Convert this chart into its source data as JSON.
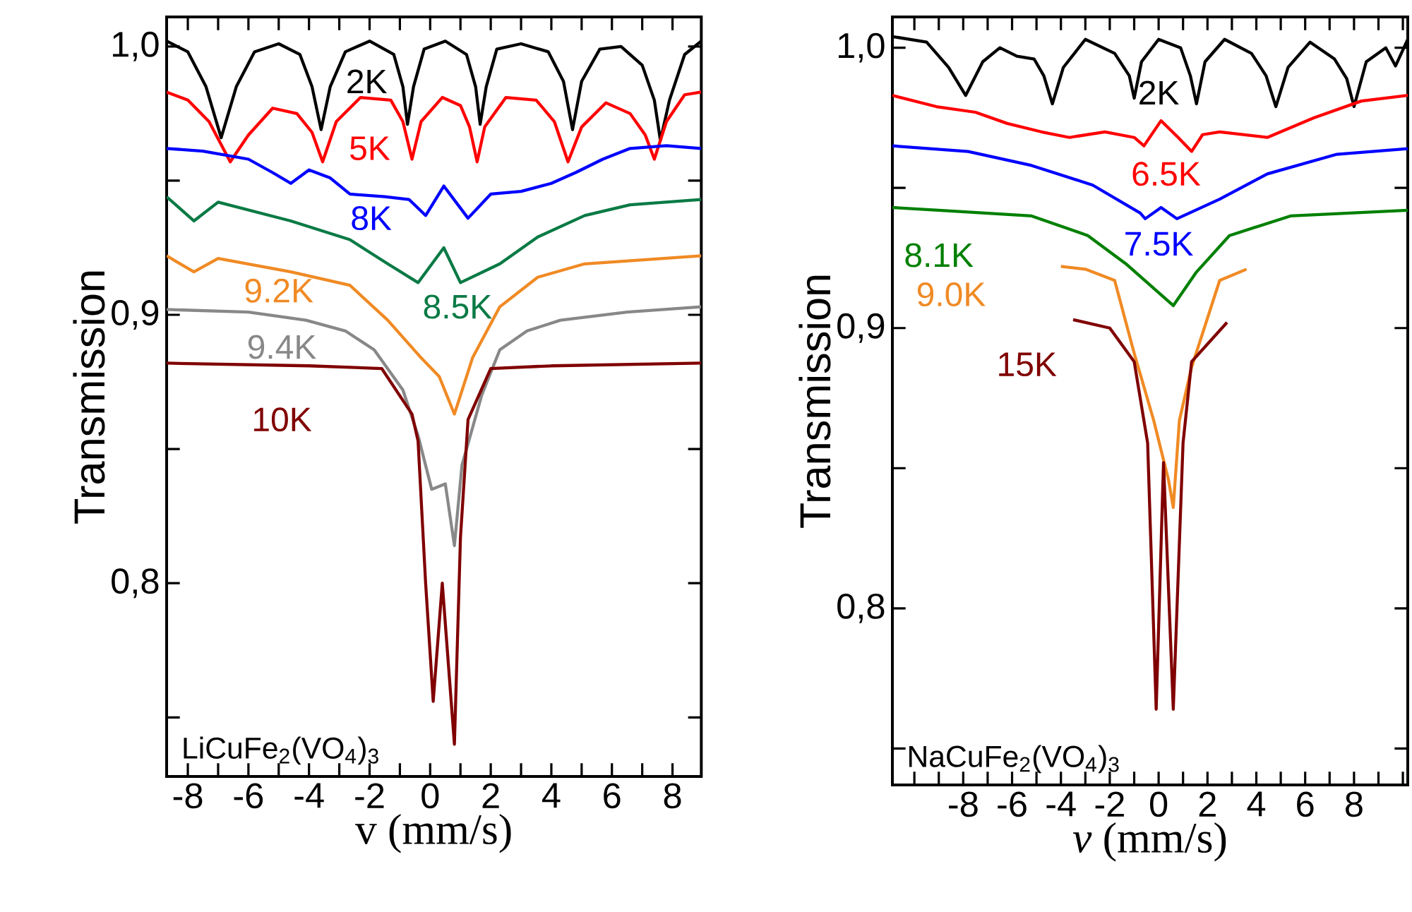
{
  "chart_data": [
    {
      "type": "line",
      "xlabel": "v (mm/s)",
      "ylabel": "Transmission",
      "annotations": [
        "LiCuFe$_{2}$(VO$_{4}$)$_{3}$"
      ],
      "xlim": [
        -8.7,
        8.95
      ],
      "ylim": [
        0.728,
        1.011
      ],
      "xticks": [
        -8,
        {
          "value": -7,
          "label": null
        },
        -6,
        {
          "value": -5,
          "label": null
        },
        -4,
        {
          "value": -3,
          "label": null
        },
        -2,
        {
          "value": -1,
          "label": null
        },
        0,
        {
          "value": 1,
          "label": null
        },
        2,
        {
          "value": 3,
          "label": null
        },
        4,
        {
          "value": 5,
          "label": null
        },
        6,
        {
          "value": 7,
          "label": null
        },
        8
      ],
      "yticks": [
        {
          "value": 0.75,
          "label": null
        },
        {
          "value": 0.8,
          "label": "0,8"
        },
        {
          "value": 0.85,
          "label": null
        },
        {
          "value": 0.9,
          "label": "0,9"
        },
        {
          "value": 0.95,
          "label": null
        },
        {
          "value": 1.0,
          "label": "1,0"
        }
      ],
      "series": [
        {
          "name": "2K",
          "color": "#000000",
          "x": [
            -8.7,
            -8,
            -7.4,
            -6.9,
            -6.4,
            -5.8,
            -5,
            -4.3,
            -3.9,
            -3.6,
            -3.3,
            -2.8,
            -2,
            -1.2,
            -0.9,
            -0.75,
            -0.55,
            -0.2,
            0.5,
            1.2,
            1.5,
            1.65,
            1.85,
            2.2,
            3,
            3.9,
            4.4,
            4.7,
            5.0,
            5.6,
            6.3,
            7.0,
            7.4,
            7.6,
            7.9,
            8.4,
            8.95
          ],
          "values": [
            1.002,
            0.998,
            0.985,
            0.966,
            0.985,
            0.998,
            1.001,
            0.997,
            0.985,
            0.969,
            0.985,
            0.998,
            1.002,
            0.997,
            0.985,
            0.971,
            0.985,
            0.999,
            1.002,
            0.997,
            0.985,
            0.971,
            0.985,
            0.999,
            1.001,
            0.998,
            0.987,
            0.969,
            0.987,
            0.999,
            1.0,
            0.993,
            0.98,
            0.965,
            0.98,
            0.997,
            1.002
          ]
        },
        {
          "name": "5K",
          "color": "#ff0000",
          "x": [
            -8.7,
            -8,
            -7.3,
            -6.6,
            -6,
            -5.2,
            -4.4,
            -3.9,
            -3.55,
            -3.1,
            -2.3,
            -1.3,
            -0.9,
            -0.6,
            -0.3,
            0.4,
            1.0,
            1.3,
            1.55,
            1.8,
            2.5,
            3.5,
            4.1,
            4.55,
            5.0,
            5.8,
            6.6,
            7.1,
            7.4,
            7.8,
            8.4,
            8.95
          ],
          "values": [
            0.983,
            0.98,
            0.972,
            0.957,
            0.967,
            0.977,
            0.975,
            0.968,
            0.957,
            0.972,
            0.981,
            0.98,
            0.972,
            0.958,
            0.972,
            0.981,
            0.978,
            0.97,
            0.957,
            0.97,
            0.981,
            0.98,
            0.972,
            0.957,
            0.97,
            0.979,
            0.975,
            0.967,
            0.958,
            0.972,
            0.982,
            0.983
          ]
        },
        {
          "name": "8K",
          "color": "#0000ff",
          "x": [
            -8.7,
            -7.5,
            -6,
            -5.2,
            -4.6,
            -4,
            -3.3,
            -2.65,
            -1.5,
            -0.7,
            -0.15,
            0.45,
            1.25,
            2.0,
            3.0,
            4.0,
            4.8,
            5.7,
            6.6,
            7.8,
            8.95
          ],
          "values": [
            0.962,
            0.961,
            0.958,
            0.953,
            0.949,
            0.954,
            0.951,
            0.945,
            0.944,
            0.943,
            0.937,
            0.948,
            0.936,
            0.945,
            0.946,
            0.949,
            0.953,
            0.958,
            0.962,
            0.963,
            0.962
          ]
        },
        {
          "name": "8.5K",
          "color": "#0a7a45",
          "x": [
            -8.7,
            -7.8,
            -7.0,
            -4.6,
            -2.65,
            -1.4,
            -0.4,
            0.45,
            1.0,
            2.3,
            3.55,
            5.1,
            6.6,
            8.95
          ],
          "values": [
            0.944,
            0.935,
            0.942,
            0.935,
            0.928,
            0.919,
            0.912,
            0.925,
            0.912,
            0.919,
            0.929,
            0.937,
            0.941,
            0.943
          ]
        },
        {
          "name": "9.2K",
          "color": "#f08a24",
          "x": [
            -8.7,
            -7.8,
            -7.0,
            -4.6,
            -2.65,
            -1.4,
            -0.3,
            0.3,
            0.8,
            1.4,
            2.3,
            3.55,
            5.1,
            8.95
          ],
          "values": [
            0.922,
            0.916,
            0.921,
            0.916,
            0.911,
            0.898,
            0.884,
            0.877,
            0.863,
            0.884,
            0.903,
            0.914,
            0.919,
            0.922
          ]
        },
        {
          "name": "9.4K",
          "color": "#888888",
          "x": [
            -8.7,
            -6,
            -4.1,
            -2.8,
            -1.85,
            -0.9,
            -0.4,
            0.05,
            0.5,
            0.8,
            1.05,
            1.7,
            2.3,
            3.2,
            4.3,
            6.5,
            8.95
          ],
          "values": [
            0.902,
            0.901,
            0.898,
            0.894,
            0.887,
            0.872,
            0.855,
            0.835,
            0.837,
            0.814,
            0.844,
            0.87,
            0.887,
            0.894,
            0.898,
            0.901,
            0.903
          ]
        },
        {
          "name": "10K",
          "color": "#800000",
          "x": [
            -8.7,
            -4,
            -1.6,
            -0.6,
            -0.4,
            -0.15,
            0.1,
            0.4,
            0.8,
            1.0,
            1.25,
            2.0,
            4,
            8.95
          ],
          "values": [
            0.882,
            0.881,
            0.88,
            0.863,
            0.853,
            0.8,
            0.756,
            0.8,
            0.74,
            0.817,
            0.861,
            0.88,
            0.881,
            0.882
          ]
        }
      ]
    },
    {
      "type": "line",
      "xlabel": "*v* (mm/s)",
      "ylabel": "Transmission",
      "annotations": [
        "NaCuFe$_{2}$(VO$_{4}$)$_{3}$"
      ],
      "xlim": [
        -10.9,
        10.2
      ],
      "ylim": [
        0.737,
        1.011
      ],
      "xticks": [
        {
          "value": -10,
          "label": null
        },
        {
          "value": -9,
          "label": null
        },
        -8,
        {
          "value": -7,
          "label": null
        },
        -6,
        {
          "value": -5,
          "label": null
        },
        -4,
        {
          "value": -3,
          "label": null
        },
        -2,
        {
          "value": -1,
          "label": null
        },
        0,
        {
          "value": 1,
          "label": null
        },
        2,
        {
          "value": 3,
          "label": null
        },
        4,
        {
          "value": 5,
          "label": null
        },
        6,
        {
          "value": 7,
          "label": null
        },
        8,
        {
          "value": 9,
          "label": null
        },
        {
          "value": 10,
          "label": null
        }
      ],
      "yticks": [
        {
          "value": 0.75,
          "label": null
        },
        {
          "value": 0.8,
          "label": "0,8"
        },
        {
          "value": 0.85,
          "label": null
        },
        {
          "value": 0.9,
          "label": "0,9"
        },
        {
          "value": 0.95,
          "label": null
        },
        {
          "value": 1.0,
          "label": "1,0"
        }
      ],
      "series": [
        {
          "name": "2K",
          "color": "#000000",
          "x": [
            -10.9,
            -9.5,
            -8.6,
            -7.9,
            -7.2,
            -6.5,
            -5.8,
            -5.1,
            -4.7,
            -4.35,
            -3.9,
            -3.0,
            -1.8,
            -1.2,
            -1.0,
            -0.7,
            0,
            0.9,
            1.3,
            1.55,
            1.9,
            2.7,
            3.8,
            4.4,
            4.8,
            5.3,
            6.2,
            7.2,
            7.7,
            8.0,
            8.5,
            9.3,
            9.7,
            10.2
          ],
          "values": [
            1.004,
            1.002,
            0.993,
            0.983,
            0.995,
            1.0,
            0.997,
            0.996,
            0.99,
            0.98,
            0.993,
            1.003,
            0.998,
            0.99,
            0.982,
            0.995,
            1.003,
            1.0,
            0.99,
            0.98,
            0.995,
            1.003,
            0.998,
            0.99,
            0.979,
            0.993,
            1.002,
            0.996,
            0.989,
            0.979,
            0.995,
            1.0,
            0.9935,
            1.003
          ]
        },
        {
          "name": "6.5K",
          "color": "#ff0000",
          "x": [
            -10.9,
            -9.1,
            -7.5,
            -6.2,
            -4.8,
            -3.65,
            -2.2,
            -1.0,
            -0.6,
            0.1,
            0.8,
            1.35,
            1.8,
            2.5,
            4.45,
            6.35,
            8.3,
            10.2
          ],
          "values": [
            0.983,
            0.979,
            0.977,
            0.973,
            0.97,
            0.968,
            0.97,
            0.968,
            0.965,
            0.974,
            0.968,
            0.963,
            0.969,
            0.97,
            0.968,
            0.975,
            0.981,
            0.983
          ]
        },
        {
          "name": "7.5K",
          "color": "#0000ff",
          "x": [
            -10.9,
            -7.8,
            -5.2,
            -2.7,
            -0.75,
            -0.55,
            0.1,
            0.75,
            2.5,
            4.45,
            7.3,
            10.2
          ],
          "values": [
            0.965,
            0.963,
            0.958,
            0.951,
            0.941,
            0.939,
            0.943,
            0.939,
            0.946,
            0.955,
            0.962,
            0.964
          ]
        },
        {
          "name": "8.1K",
          "color": "#008000",
          "x": [
            -10.9,
            -9.0,
            -5.2,
            -2.9,
            -1.35,
            0.6,
            1.55,
            2.9,
            5.4,
            10.2
          ],
          "values": [
            0.943,
            0.942,
            0.94,
            0.933,
            0.923,
            0.908,
            0.92,
            0.933,
            0.94,
            0.942
          ]
        },
        {
          "name": "9.0K",
          "color": "#f08a24",
          "x": [
            -4.0,
            -3.0,
            -1.8,
            -1.0,
            -0.2,
            0.4,
            0.6,
            0.85,
            1.35,
            2.5,
            3.6
          ],
          "values": [
            0.922,
            0.921,
            0.917,
            0.891,
            0.867,
            0.846,
            0.836,
            0.867,
            0.886,
            0.917,
            0.921
          ]
        },
        {
          "name": "15K",
          "color": "#800000",
          "x": [
            -3.5,
            -2.0,
            -1.0,
            -0.45,
            -0.1,
            0.2,
            0.6,
            1.0,
            1.35,
            2.8
          ],
          "values": [
            0.903,
            0.9,
            0.888,
            0.859,
            0.764,
            0.852,
            0.764,
            0.859,
            0.888,
            0.902
          ]
        }
      ]
    }
  ]
}
